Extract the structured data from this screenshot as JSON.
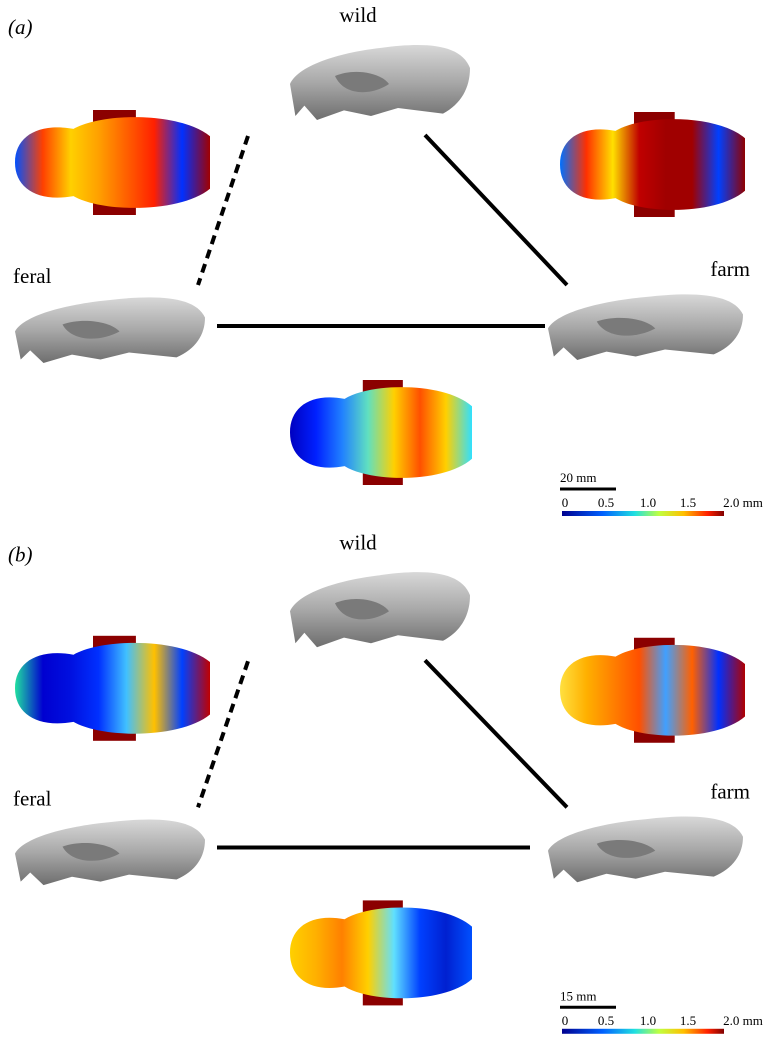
{
  "panels": [
    {
      "label": "(a)",
      "top_label": "wild",
      "left_label": "feral",
      "right_label": "farm",
      "scale_bar": "20 mm",
      "colorbar_ticks": [
        "0",
        "0.5",
        "1.0",
        "1.5",
        "2.0 mm"
      ]
    },
    {
      "label": "(b)",
      "top_label": "wild",
      "left_label": "feral",
      "right_label": "farm",
      "scale_bar": "15 mm",
      "colorbar_ticks": [
        "0",
        "0.5",
        "1.0",
        "1.5",
        "2.0 mm"
      ]
    }
  ]
}
